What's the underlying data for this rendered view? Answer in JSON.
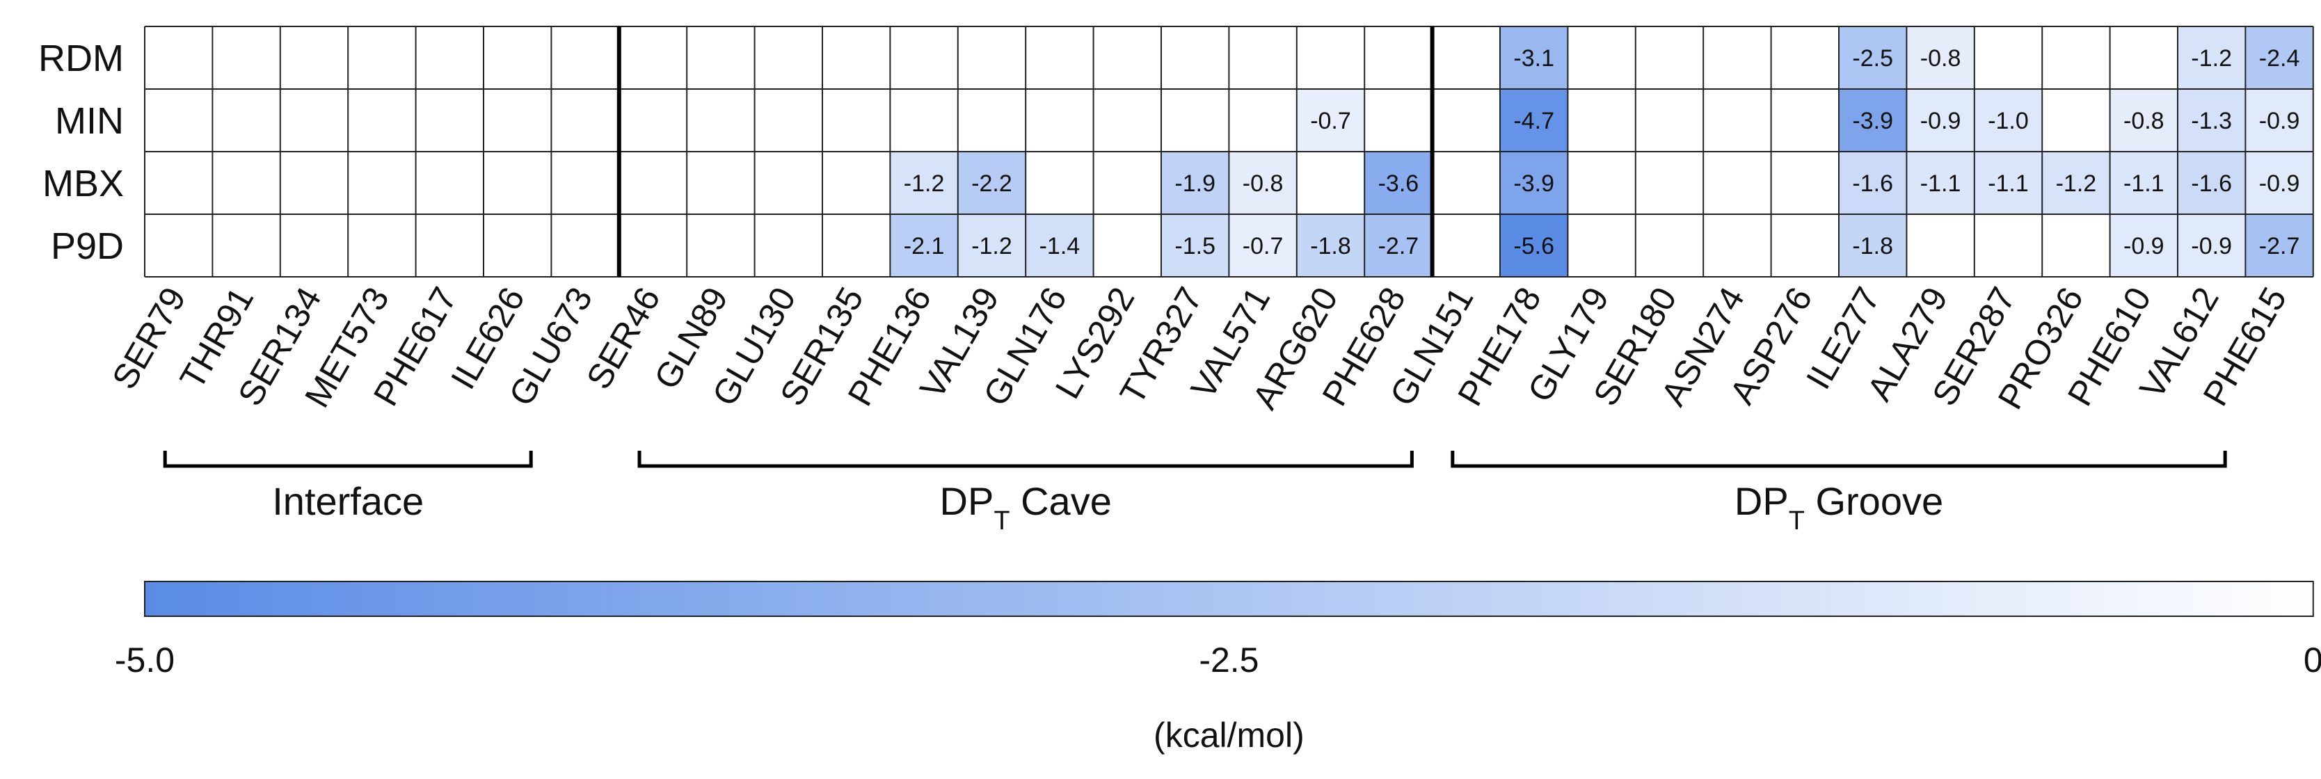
{
  "chart_data": {
    "type": "heatmap",
    "rows": [
      "RDM",
      "MIN",
      "MBX",
      "P9D"
    ],
    "columns": [
      "SER79",
      "THR91",
      "SER134",
      "MET573",
      "PHE617",
      "ILE626",
      "GLU673",
      "SER46",
      "GLN89",
      "GLU130",
      "SER135",
      "PHE136",
      "VAL139",
      "GLN176",
      "LYS292",
      "TYR327",
      "VAL571",
      "ARG620",
      "PHE628",
      "GLN151",
      "PHE178",
      "GLY179",
      "SER180",
      "ASN274",
      "ASP276",
      "ILE277",
      "ALA279",
      "SER287",
      "PRO326",
      "PHE610",
      "VAL612",
      "PHE615"
    ],
    "values": [
      [
        null,
        null,
        null,
        null,
        null,
        null,
        null,
        null,
        null,
        null,
        null,
        null,
        null,
        null,
        null,
        null,
        null,
        null,
        null,
        null,
        -3.1,
        null,
        null,
        null,
        null,
        -2.5,
        -0.8,
        null,
        null,
        null,
        -1.2,
        -2.4
      ],
      [
        null,
        null,
        null,
        null,
        null,
        null,
        null,
        null,
        null,
        null,
        null,
        null,
        null,
        null,
        null,
        null,
        null,
        -0.7,
        null,
        null,
        -4.7,
        null,
        null,
        null,
        null,
        -3.9,
        -0.9,
        -1.0,
        null,
        -0.8,
        -1.3,
        -0.9
      ],
      [
        null,
        null,
        null,
        null,
        null,
        null,
        null,
        null,
        null,
        null,
        null,
        -1.2,
        -2.2,
        null,
        null,
        -1.9,
        -0.8,
        null,
        -3.6,
        null,
        -3.9,
        null,
        null,
        null,
        null,
        -1.6,
        -1.1,
        -1.1,
        -1.2,
        -1.1,
        -1.6,
        -0.9
      ],
      [
        null,
        null,
        null,
        null,
        null,
        null,
        null,
        null,
        null,
        null,
        null,
        -2.1,
        -1.2,
        -1.4,
        null,
        -1.5,
        -0.7,
        -1.8,
        -2.7,
        null,
        -5.6,
        null,
        null,
        null,
        null,
        -1.8,
        null,
        null,
        null,
        -0.9,
        -0.9,
        -2.7
      ]
    ],
    "cell_labels": [
      [
        null,
        null,
        null,
        null,
        null,
        null,
        null,
        null,
        null,
        null,
        null,
        null,
        null,
        null,
        null,
        null,
        null,
        null,
        null,
        null,
        "-3.1",
        null,
        null,
        null,
        null,
        "-2.5",
        "-0.8",
        null,
        null,
        null,
        "-1.2",
        "-2.4"
      ],
      [
        null,
        null,
        null,
        null,
        null,
        null,
        null,
        null,
        null,
        null,
        null,
        null,
        null,
        null,
        null,
        null,
        null,
        "-0.7",
        null,
        null,
        "-4.7",
        null,
        null,
        null,
        null,
        "-3.9",
        "-0.9",
        "-1.0",
        null,
        "-0.8",
        "-1.3",
        "-0.9"
      ],
      [
        null,
        null,
        null,
        null,
        null,
        null,
        null,
        null,
        null,
        null,
        null,
        "-1.2",
        "-2.2",
        null,
        null,
        "-1.9",
        "-0.8",
        null,
        "-3.6",
        null,
        "-3.9",
        null,
        null,
        null,
        null,
        "-1.6",
        "-1.1",
        "-1.1",
        "-1.2",
        "-1.1",
        "-1.6",
        "-0.9"
      ],
      [
        null,
        null,
        null,
        null,
        null,
        null,
        null,
        null,
        null,
        null,
        null,
        "-2.1",
        "-1.2",
        "-1.4",
        null,
        "-1.5",
        "-0.7",
        "-1.8",
        "-2.7",
        null,
        "-5.6",
        null,
        null,
        null,
        null,
        "-1.8",
        null,
        null,
        null,
        "-0.9",
        "-0.9",
        "-2.7"
      ]
    ],
    "groups": [
      {
        "label": "Interface",
        "sub": "",
        "suffix": "",
        "start": 0,
        "end": 5
      },
      {
        "label": "DP",
        "sub": "T",
        "suffix": " Cave",
        "start": 7,
        "end": 18
      },
      {
        "label": "DP",
        "sub": "T",
        "suffix": " Groove",
        "start": 19,
        "end": 30
      }
    ],
    "separators_after": [
      6,
      18
    ],
    "colorbar": {
      "min": -5.0,
      "max": 0,
      "ticks": [
        "-5.0",
        "-2.5",
        "0"
      ],
      "tick_values": [
        -5.0,
        -2.5,
        0
      ],
      "unit": "(kcal/mol)",
      "color_min": "#5a8ce6",
      "color_max": "#ffffff"
    }
  }
}
